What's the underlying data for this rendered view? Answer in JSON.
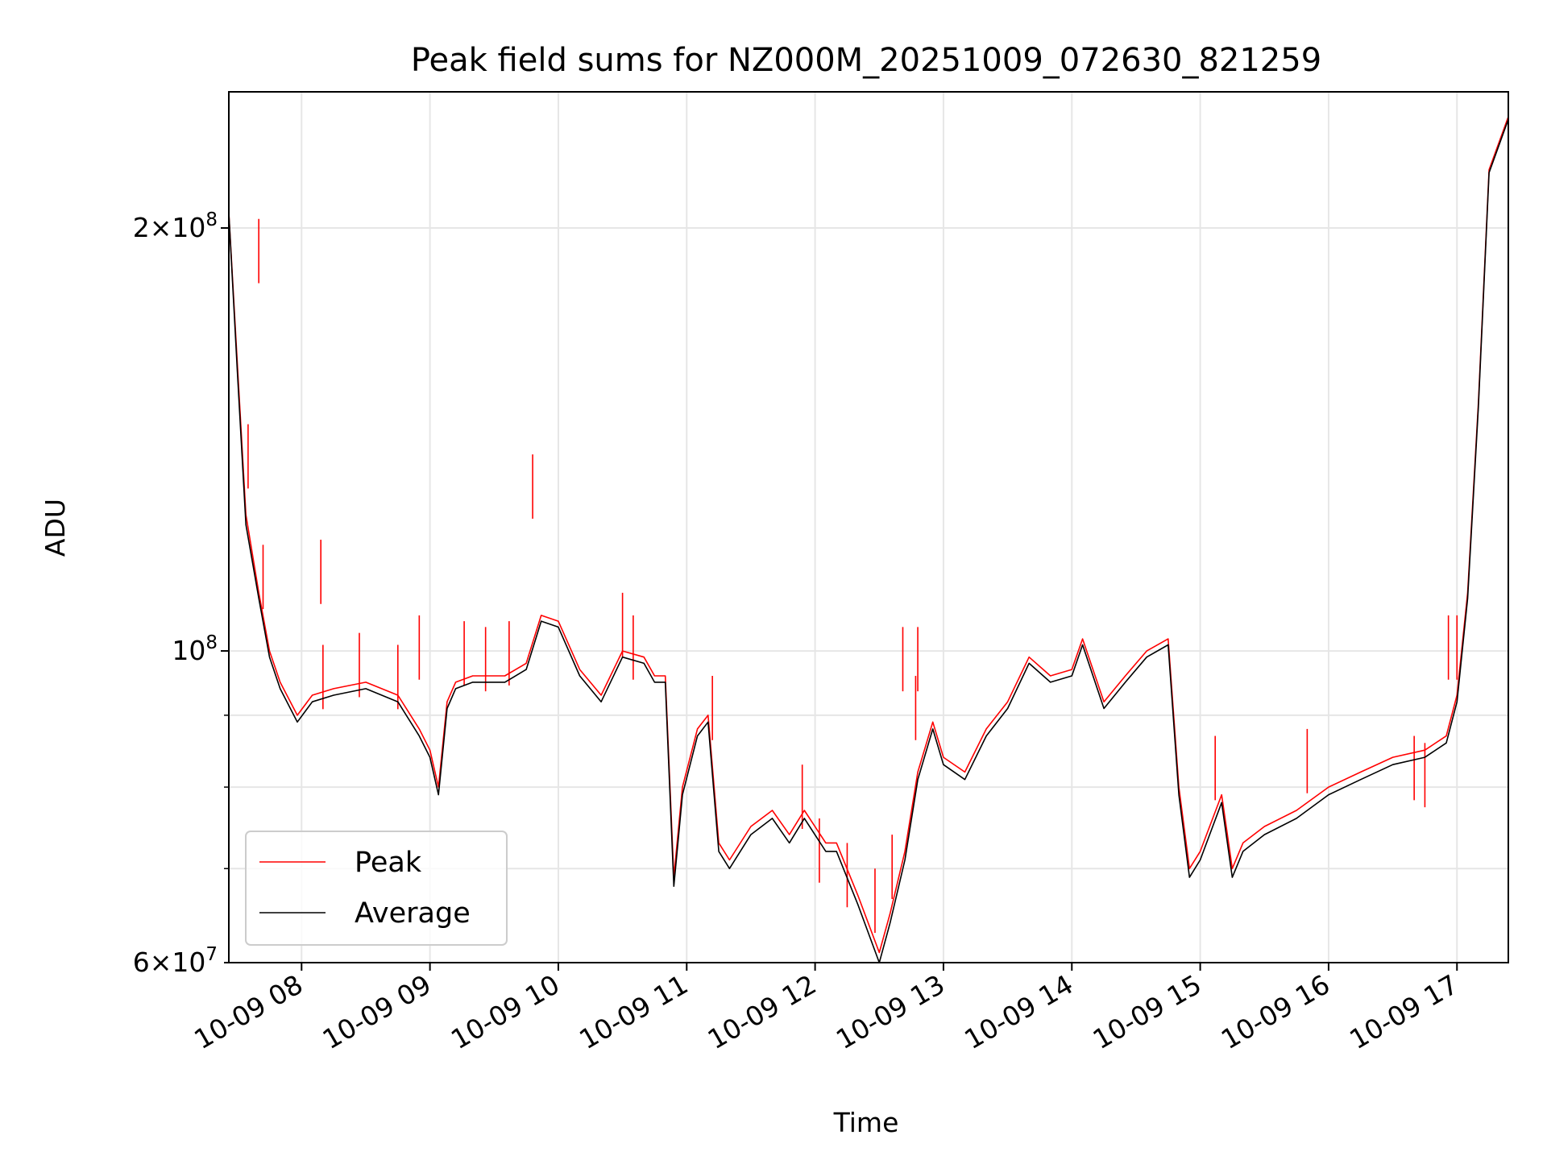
{
  "chart_data": {
    "type": "line",
    "title": "Peak field sums for NZ000M_20251009_072630_821259",
    "xlabel": "Time",
    "ylabel": "ADU",
    "yscale": "log",
    "ylim": [
      60000000,
      250000000
    ],
    "xlim": [
      "2025-10-09 07:26",
      "2025-10-09 17:24"
    ],
    "grid": true,
    "legend_position": "lower-left",
    "x_tick_labels": [
      "10-09 08",
      "10-09 09",
      "10-09 10",
      "10-09 11",
      "10-09 12",
      "10-09 13",
      "10-09 14",
      "10-09 15",
      "10-09 16",
      "10-09 17"
    ],
    "y_ticks": [
      {
        "value": 200000000,
        "mantissa": "2",
        "exponent": "8",
        "kind": "major"
      },
      {
        "value": 100000000,
        "mantissa": "",
        "exponent": "8",
        "kind": "major"
      },
      {
        "value": 60000000,
        "mantissa": "6",
        "exponent": "7",
        "kind": "minor"
      }
    ],
    "y_minor_grid": [
      70000000,
      80000000,
      90000000
    ],
    "x": [
      "2025-10-09 07:26",
      "2025-10-09 07:30",
      "2025-10-09 07:34",
      "2025-10-09 07:40",
      "2025-10-09 07:45",
      "2025-10-09 07:50",
      "2025-10-09 07:58",
      "2025-10-09 08:05",
      "2025-10-09 08:15",
      "2025-10-09 08:30",
      "2025-10-09 08:45",
      "2025-10-09 08:55",
      "2025-10-09 09:00",
      "2025-10-09 09:04",
      "2025-10-09 09:08",
      "2025-10-09 09:12",
      "2025-10-09 09:20",
      "2025-10-09 09:35",
      "2025-10-09 09:45",
      "2025-10-09 09:52",
      "2025-10-09 10:00",
      "2025-10-09 10:10",
      "2025-10-09 10:20",
      "2025-10-09 10:30",
      "2025-10-09 10:40",
      "2025-10-09 10:45",
      "2025-10-09 10:50",
      "2025-10-09 10:54",
      "2025-10-09 10:58",
      "2025-10-09 11:05",
      "2025-10-09 11:10",
      "2025-10-09 11:15",
      "2025-10-09 11:20",
      "2025-10-09 11:30",
      "2025-10-09 11:40",
      "2025-10-09 11:48",
      "2025-10-09 11:55",
      "2025-10-09 12:05",
      "2025-10-09 12:10",
      "2025-10-09 12:20",
      "2025-10-09 12:30",
      "2025-10-09 12:35",
      "2025-10-09 12:42",
      "2025-10-09 12:48",
      "2025-10-09 12:55",
      "2025-10-09 13:00",
      "2025-10-09 13:10",
      "2025-10-09 13:20",
      "2025-10-09 13:30",
      "2025-10-09 13:40",
      "2025-10-09 13:50",
      "2025-10-09 14:00",
      "2025-10-09 14:05",
      "2025-10-09 14:15",
      "2025-10-09 14:25",
      "2025-10-09 14:35",
      "2025-10-09 14:45",
      "2025-10-09 14:50",
      "2025-10-09 14:55",
      "2025-10-09 15:00",
      "2025-10-09 15:10",
      "2025-10-09 15:15",
      "2025-10-09 15:20",
      "2025-10-09 15:30",
      "2025-10-09 15:45",
      "2025-10-09 16:00",
      "2025-10-09 16:15",
      "2025-10-09 16:30",
      "2025-10-09 16:45",
      "2025-10-09 16:55",
      "2025-10-09 17:00",
      "2025-10-09 17:05",
      "2025-10-09 17:10",
      "2025-10-09 17:15",
      "2025-10-09 17:24"
    ],
    "series": [
      {
        "name": "Peak",
        "color": "#ff0000",
        "values": [
          205000000,
          160000000,
          125000000,
          110000000,
          100000000,
          95000000,
          90000000,
          93000000,
          94000000,
          95000000,
          93000000,
          88000000,
          85000000,
          80000000,
          92000000,
          95000000,
          96000000,
          96000000,
          98000000,
          106000000,
          105000000,
          97000000,
          93000000,
          100000000,
          99000000,
          96000000,
          96000000,
          69000000,
          80000000,
          88000000,
          90000000,
          73000000,
          71000000,
          75000000,
          77000000,
          74000000,
          77000000,
          73000000,
          73000000,
          67000000,
          61000000,
          65000000,
          72000000,
          82000000,
          89000000,
          84000000,
          82000000,
          88000000,
          92000000,
          99000000,
          96000000,
          97000000,
          102000000,
          92000000,
          96000000,
          100000000,
          102000000,
          80000000,
          70000000,
          72000000,
          79000000,
          70000000,
          73000000,
          75000000,
          77000000,
          80000000,
          82000000,
          84000000,
          85000000,
          87000000,
          93000000,
          110000000,
          150000000,
          220000000,
          240000000
        ]
      },
      {
        "name": "Average",
        "color": "#000000",
        "values": [
          205000000,
          158000000,
          123000000,
          109000000,
          99000000,
          94000000,
          89000000,
          92000000,
          93000000,
          94000000,
          92000000,
          87000000,
          84000000,
          79000000,
          91000000,
          94000000,
          95000000,
          95000000,
          97000000,
          105000000,
          104000000,
          96000000,
          92000000,
          99000000,
          98000000,
          95000000,
          95000000,
          68000000,
          79000000,
          87000000,
          89000000,
          72000000,
          70000000,
          74000000,
          76000000,
          73000000,
          76000000,
          72000000,
          72000000,
          66000000,
          60000000,
          64000000,
          71000000,
          81000000,
          88000000,
          83000000,
          81000000,
          87000000,
          91000000,
          98000000,
          95000000,
          96000000,
          101000000,
          91000000,
          95000000,
          99000000,
          101000000,
          79000000,
          69000000,
          71000000,
          78000000,
          69000000,
          72000000,
          74000000,
          76000000,
          79000000,
          81000000,
          83000000,
          84000000,
          86000000,
          92000000,
          109000000,
          149000000,
          219000000,
          239000000
        ]
      }
    ],
    "spikes": [
      {
        "x": "2025-10-09 07:40",
        "value": 203000000
      },
      {
        "x": "2025-10-09 07:35",
        "value": 145000000
      },
      {
        "x": "2025-10-09 07:42",
        "value": 119000000
      },
      {
        "x": "2025-10-09 08:09",
        "value": 120000000
      },
      {
        "x": "2025-10-09 08:10",
        "value": 101000000
      },
      {
        "x": "2025-10-09 08:27",
        "value": 103000000
      },
      {
        "x": "2025-10-09 08:45",
        "value": 101000000
      },
      {
        "x": "2025-10-09 08:55",
        "value": 106000000
      },
      {
        "x": "2025-10-09 09:16",
        "value": 105000000
      },
      {
        "x": "2025-10-09 09:26",
        "value": 104000000
      },
      {
        "x": "2025-10-09 09:37",
        "value": 105000000
      },
      {
        "x": "2025-10-09 09:48",
        "value": 138000000
      },
      {
        "x": "2025-10-09 10:30",
        "value": 110000000
      },
      {
        "x": "2025-10-09 10:35",
        "value": 106000000
      },
      {
        "x": "2025-10-09 11:12",
        "value": 96000000
      },
      {
        "x": "2025-10-09 11:54",
        "value": 83000000
      },
      {
        "x": "2025-10-09 12:02",
        "value": 76000000
      },
      {
        "x": "2025-10-09 12:15",
        "value": 73000000
      },
      {
        "x": "2025-10-09 12:28",
        "value": 70000000
      },
      {
        "x": "2025-10-09 12:36",
        "value": 74000000
      },
      {
        "x": "2025-10-09 12:41",
        "value": 104000000
      },
      {
        "x": "2025-10-09 12:47",
        "value": 96000000
      },
      {
        "x": "2025-10-09 12:48",
        "value": 104000000
      },
      {
        "x": "2025-10-09 15:07",
        "value": 87000000
      },
      {
        "x": "2025-10-09 15:50",
        "value": 88000000
      },
      {
        "x": "2025-10-09 16:40",
        "value": 87000000
      },
      {
        "x": "2025-10-09 16:45",
        "value": 86000000
      },
      {
        "x": "2025-10-09 16:56",
        "value": 106000000
      },
      {
        "x": "2025-10-09 17:00",
        "value": 106000000
      }
    ]
  }
}
